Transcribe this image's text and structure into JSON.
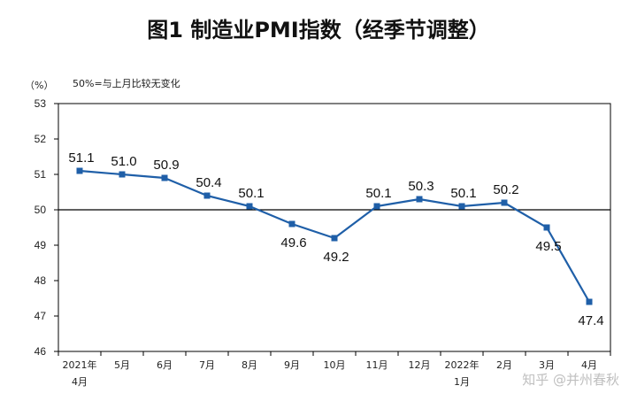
{
  "title": "图1 制造业PMI指数（经季节调整）",
  "unit_label": "（%）",
  "note": "50%=与上月比较无变化",
  "watermark": "知乎 @并州春秋",
  "colors": {
    "line": "#1f5fa8",
    "reference": "#000000",
    "frame": "#000000"
  },
  "chart_data": {
    "type": "line",
    "title": "图1 制造业PMI指数（经季节调整）",
    "ylabel": "（%）",
    "xlabel": "",
    "categories": [
      [
        "2021年",
        "4月"
      ],
      [
        "5月"
      ],
      [
        "6月"
      ],
      [
        "7月"
      ],
      [
        "8月"
      ],
      [
        "9月"
      ],
      [
        "10月"
      ],
      [
        "11月"
      ],
      [
        "12月"
      ],
      [
        "2022年",
        "1月"
      ],
      [
        "2月"
      ],
      [
        "3月"
      ],
      [
        "4月"
      ]
    ],
    "series": [
      {
        "values": [
          51.1,
          51.0,
          50.9,
          50.4,
          50.1,
          49.6,
          49.2,
          50.1,
          50.3,
          50.1,
          50.2,
          49.5,
          47.4
        ]
      }
    ],
    "data_labels": [
      "51.1",
      "51.0",
      "50.9",
      "50.4",
      "50.1",
      "49.6",
      "49.2",
      "50.1",
      "50.3",
      "50.1",
      "50.2",
      "49.5",
      "47.4"
    ],
    "label_position": [
      "above",
      "above",
      "above",
      "above",
      "above",
      "below",
      "below",
      "above",
      "above",
      "above",
      "above",
      "below",
      "below"
    ],
    "ylim": [
      46,
      53
    ],
    "yticks": [
      46,
      47,
      48,
      49,
      50,
      51,
      52,
      53
    ],
    "reference_line": 50,
    "grid": false,
    "legend": "none",
    "marker": "square"
  }
}
